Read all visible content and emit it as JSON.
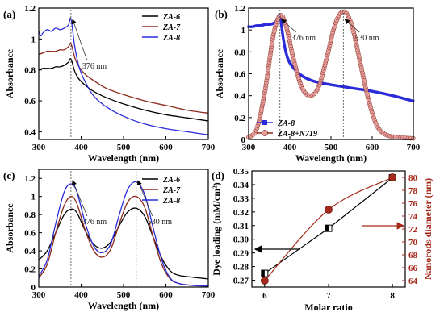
{
  "chart_data": [
    {
      "id": "a",
      "type": "line",
      "panel_label": "(a)",
      "xlabel": "Wavelength (nm)",
      "ylabel": "Absorbance",
      "xlim": [
        300,
        700
      ],
      "ylim": [
        0.35,
        1.2
      ],
      "xticks": [
        300,
        400,
        500,
        600,
        700
      ],
      "yticks": [
        0.4,
        0.6,
        0.8,
        1.0,
        1.2
      ],
      "legend_position": "top-right",
      "series": [
        {
          "name": "ZA-6",
          "color": "#000000",
          "x": [
            300,
            310,
            320,
            330,
            340,
            350,
            360,
            370,
            376,
            385,
            395,
            410,
            430,
            460,
            500,
            550,
            600,
            650,
            700
          ],
          "y": [
            0.8,
            0.81,
            0.81,
            0.81,
            0.82,
            0.82,
            0.83,
            0.85,
            0.87,
            0.79,
            0.74,
            0.7,
            0.66,
            0.62,
            0.58,
            0.54,
            0.51,
            0.49,
            0.47
          ]
        },
        {
          "name": "ZA-7",
          "color": "#8B2A1A",
          "x": [
            300,
            310,
            320,
            330,
            340,
            350,
            360,
            370,
            376,
            385,
            395,
            410,
            430,
            460,
            500,
            550,
            600,
            650,
            700
          ],
          "y": [
            0.9,
            0.91,
            0.92,
            0.92,
            0.92,
            0.93,
            0.93,
            0.95,
            0.97,
            0.88,
            0.82,
            0.77,
            0.73,
            0.68,
            0.64,
            0.6,
            0.57,
            0.54,
            0.52
          ]
        },
        {
          "name": "ZA-8",
          "color": "#2B2BD9",
          "x": [
            300,
            305,
            310,
            320,
            330,
            340,
            350,
            360,
            370,
            376,
            385,
            395,
            410,
            430,
            460,
            500,
            550,
            600,
            650,
            700
          ],
          "y": [
            1.05,
            1.02,
            1.04,
            1.06,
            1.05,
            1.07,
            1.06,
            1.07,
            1.09,
            1.13,
            0.95,
            0.82,
            0.72,
            0.63,
            0.56,
            0.5,
            0.45,
            0.42,
            0.4,
            0.38
          ]
        }
      ],
      "annotations": [
        {
          "text": "376 nm",
          "x": 376
        }
      ]
    },
    {
      "id": "b",
      "type": "line",
      "panel_label": "(b)",
      "xlabel": "Wavelength (nm)",
      "ylabel": "Absorbance",
      "xlim": [
        300,
        700
      ],
      "ylim": [
        0.0,
        1.2
      ],
      "xticks": [
        300,
        400,
        500,
        600,
        700
      ],
      "yticks": [
        0.0,
        0.2,
        0.4,
        0.6,
        0.8,
        1.0,
        1.2
      ],
      "legend_position": "bottom-left",
      "series": [
        {
          "name": "ZA-8",
          "color": "#2B2BD9",
          "marker": "square",
          "x": [
            300,
            310,
            320,
            330,
            340,
            350,
            360,
            370,
            376,
            385,
            395,
            410,
            430,
            460,
            500,
            550,
            600,
            650,
            700
          ],
          "y": [
            1.03,
            1.03,
            1.04,
            1.04,
            1.05,
            1.05,
            1.06,
            1.09,
            1.13,
            0.9,
            0.74,
            0.65,
            0.58,
            0.53,
            0.5,
            0.47,
            0.44,
            0.4,
            0.35
          ]
        },
        {
          "name": "ZA-8+N719",
          "color": "#8B2A1A",
          "marker": "circle",
          "marker_fill": "#E8A0A0",
          "x": [
            300,
            320,
            340,
            360,
            376,
            390,
            410,
            430,
            450,
            470,
            490,
            510,
            530,
            550,
            570,
            590,
            610,
            630,
            660,
            700
          ],
          "y": [
            0.02,
            0.1,
            0.45,
            0.95,
            1.13,
            1.05,
            0.72,
            0.47,
            0.4,
            0.48,
            0.75,
            1.05,
            1.17,
            1.05,
            0.72,
            0.38,
            0.14,
            0.05,
            0.02,
            0.01
          ]
        }
      ],
      "annotations": [
        {
          "text": "376 nm",
          "x": 376
        },
        {
          "text": "530 nm",
          "x": 530
        }
      ]
    },
    {
      "id": "c",
      "type": "line",
      "panel_label": "(c)",
      "xlabel": "Wavelength (nm)",
      "ylabel": "Absorbance",
      "xlim": [
        300,
        700
      ],
      "ylim": [
        0.0,
        1.3
      ],
      "xticks": [
        300,
        400,
        500,
        600,
        700
      ],
      "yticks": [
        0.0,
        0.2,
        0.4,
        0.6,
        0.8,
        1.0,
        1.2
      ],
      "legend_position": "top-right",
      "series": [
        {
          "name": "ZA-6",
          "color": "#000000",
          "x": [
            300,
            320,
            340,
            360,
            376,
            390,
            410,
            430,
            450,
            470,
            490,
            510,
            530,
            550,
            570,
            590,
            610,
            630,
            660,
            700
          ],
          "y": [
            0.3,
            0.4,
            0.6,
            0.8,
            0.86,
            0.82,
            0.62,
            0.47,
            0.43,
            0.5,
            0.68,
            0.83,
            0.87,
            0.78,
            0.55,
            0.32,
            0.18,
            0.13,
            0.11,
            0.09
          ]
        },
        {
          "name": "ZA-7",
          "color": "#8B2A1A",
          "x": [
            300,
            320,
            340,
            360,
            376,
            390,
            410,
            430,
            450,
            470,
            490,
            510,
            530,
            550,
            570,
            590,
            610,
            630,
            660,
            700
          ],
          "y": [
            0.1,
            0.25,
            0.6,
            0.9,
            1.0,
            0.92,
            0.62,
            0.4,
            0.33,
            0.42,
            0.7,
            0.94,
            1.0,
            0.88,
            0.55,
            0.25,
            0.09,
            0.04,
            0.02,
            0.01
          ]
        },
        {
          "name": "ZA-8",
          "color": "#2B2BD9",
          "x": [
            300,
            320,
            340,
            360,
            376,
            390,
            410,
            430,
            450,
            470,
            490,
            510,
            530,
            550,
            570,
            590,
            610,
            630,
            660,
            700
          ],
          "y": [
            0.12,
            0.3,
            0.7,
            1.05,
            1.14,
            1.05,
            0.7,
            0.45,
            0.38,
            0.48,
            0.8,
            1.08,
            1.16,
            1.02,
            0.65,
            0.3,
            0.1,
            0.04,
            0.02,
            0.01
          ]
        }
      ],
      "annotations": [
        {
          "text": "376 nm",
          "x": 376
        },
        {
          "text": "530 nm",
          "x": 530
        }
      ]
    },
    {
      "id": "d",
      "type": "line",
      "panel_label": "(d)",
      "xlabel": "Molar ratio",
      "ylabel_left": "Dye loading (mM/cm²)",
      "ylabel_right": "Nanorods diameter (nm)",
      "xlim": [
        5.8,
        8.2
      ],
      "xticks": [
        6,
        7,
        8
      ],
      "ylim_left": [
        0.265,
        0.35
      ],
      "yticks_left": [
        0.27,
        0.28,
        0.29,
        0.3,
        0.31,
        0.32,
        0.33,
        0.34,
        0.35
      ],
      "ylim_right": [
        63,
        81
      ],
      "yticks_right": [
        64,
        66,
        68,
        70,
        72,
        74,
        76,
        78,
        80
      ],
      "series": [
        {
          "name": "Dye loading",
          "axis": "left",
          "color": "#000000",
          "marker": "square",
          "x": [
            6,
            7,
            8
          ],
          "y": [
            0.275,
            0.308,
            0.345
          ]
        },
        {
          "name": "Nanorods diameter",
          "axis": "right",
          "color": "#A62A1A",
          "marker": "circle",
          "x": [
            6,
            7,
            8
          ],
          "y": [
            64,
            75,
            80
          ]
        }
      ]
    }
  ]
}
